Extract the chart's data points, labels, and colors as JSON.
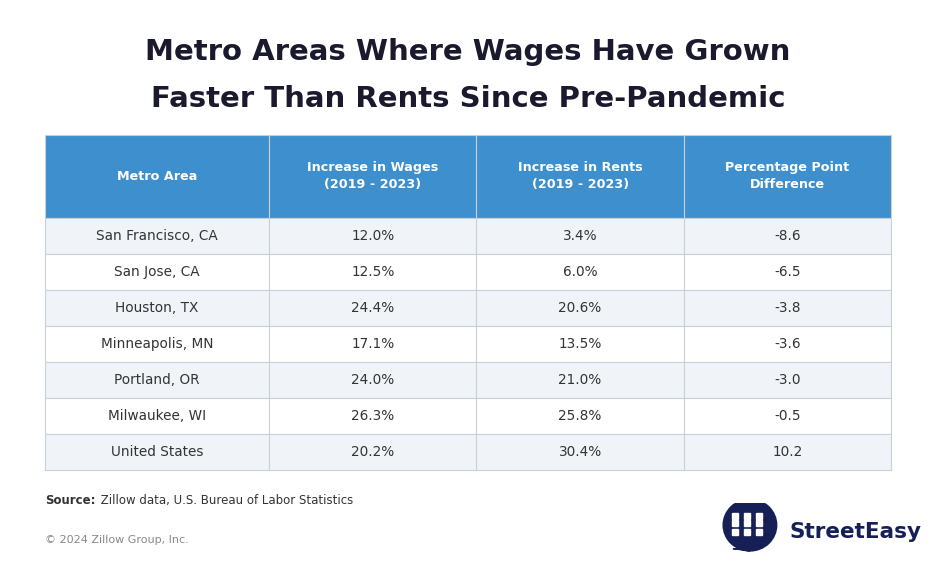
{
  "title_line1": "Metro Areas Where Wages Have Grown",
  "title_line2": "Faster Than Rents Since Pre-Pandemic",
  "col_headers": [
    "Metro Area",
    "Increase in Wages\n(2019 - 2023)",
    "Increase in Rents\n(2019 - 2023)",
    "Percentage Point\nDifference"
  ],
  "rows": [
    [
      "San Francisco, CA",
      "12.0%",
      "3.4%",
      "-8.6"
    ],
    [
      "San Jose, CA",
      "12.5%",
      "6.0%",
      "-6.5"
    ],
    [
      "Houston, TX",
      "24.4%",
      "20.6%",
      "-3.8"
    ],
    [
      "Minneapolis, MN",
      "17.1%",
      "13.5%",
      "-3.6"
    ],
    [
      "Portland, OR",
      "24.0%",
      "21.0%",
      "-3.0"
    ],
    [
      "Milwaukee, WI",
      "26.3%",
      "25.8%",
      "-0.5"
    ],
    [
      "United States",
      "20.2%",
      "30.4%",
      "10.2"
    ]
  ],
  "header_bg": "#3d8fce",
  "header_text": "#ffffff",
  "row_bg_even": "#f0f4f8",
  "row_bg_odd": "#ffffff",
  "border_color": "#c8d0d8",
  "title_color": "#1a1a2e",
  "body_text_color": "#333333",
  "source_bold": "Source:",
  "source_rest": " Zillow data, U.S. Bureau of Labor Statistics",
  "copyright_text": "© 2024 Zillow Group, Inc.",
  "streeteasy_color": "#162056",
  "bg_color": "#ffffff",
  "col_props": [
    0.265,
    0.245,
    0.245,
    0.245
  ]
}
